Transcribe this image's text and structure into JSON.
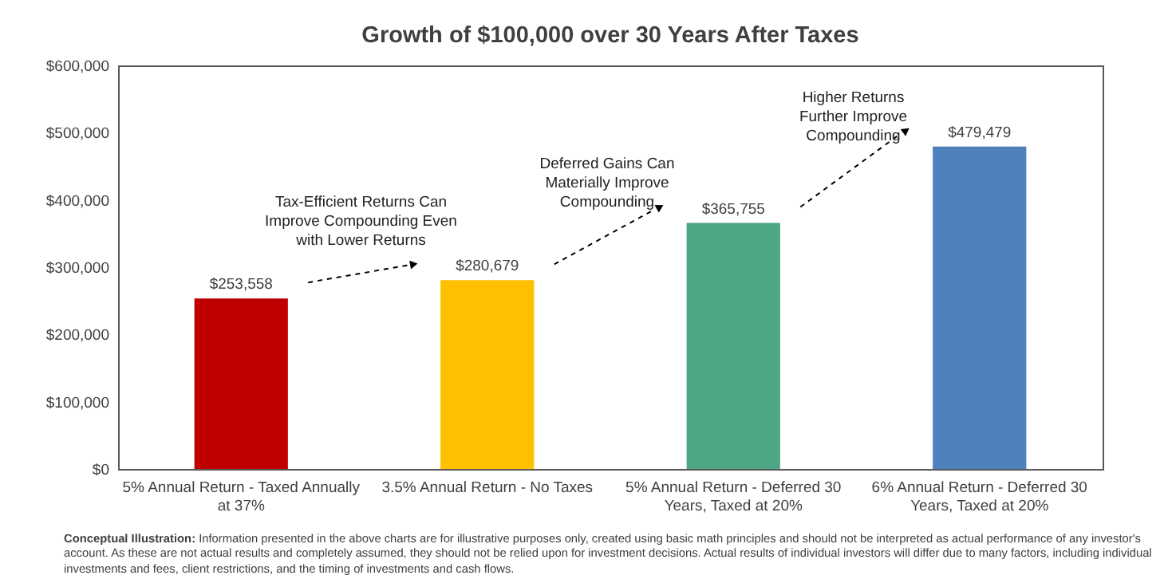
{
  "chart_data": {
    "type": "bar",
    "title": "Growth of $100,000 over 30 Years After Taxes",
    "categories": [
      "5% Annual Return - Taxed Annually at 37%",
      "3.5% Annual Return - No Taxes",
      "5% Annual Return - Deferred 30 Years, Taxed at 20%",
      "6% Annual Return - Deferred 30 Years, Taxed at 20%"
    ],
    "values": [
      253558,
      280679,
      365755,
      479479
    ],
    "colors": [
      "#c00000",
      "#ffc000",
      "#4ea784",
      "#4f81bd"
    ],
    "value_labels": [
      "$253,558",
      "$280,679",
      "$365,755",
      "$479,479"
    ],
    "ylim": [
      0,
      600000
    ],
    "yticks": [
      {
        "value": 0,
        "label": "$0"
      },
      {
        "value": 100000,
        "label": "$100,000"
      },
      {
        "value": 200000,
        "label": "$200,000"
      },
      {
        "value": 300000,
        "label": "$300,000"
      },
      {
        "value": 400000,
        "label": "$400,000"
      },
      {
        "value": 500000,
        "label": "$500,000"
      },
      {
        "value": 600000,
        "label": "$600,000"
      }
    ],
    "grid": false,
    "legend": false,
    "annotations": [
      "Tax-Efficient Returns Can\nImprove Compounding Even\nwith Lower Returns",
      "Deferred Gains Can\nMaterially Improve\nCompounding",
      "Higher Returns\nFurther Improve\nCompounding",
      "Conceptual Illustration: Information presented in the above charts are for illustrative purposes only, created using basic math principles and should not be interpreted as actual performance of any investor's account. As these are not actual results and completely assumed, they should not be relied upon for investment decisions. Actual results of individual investors will differ due to many factors, including individual investments and fees, client restrictions, and the timing of investments and cash flows."
    ]
  }
}
